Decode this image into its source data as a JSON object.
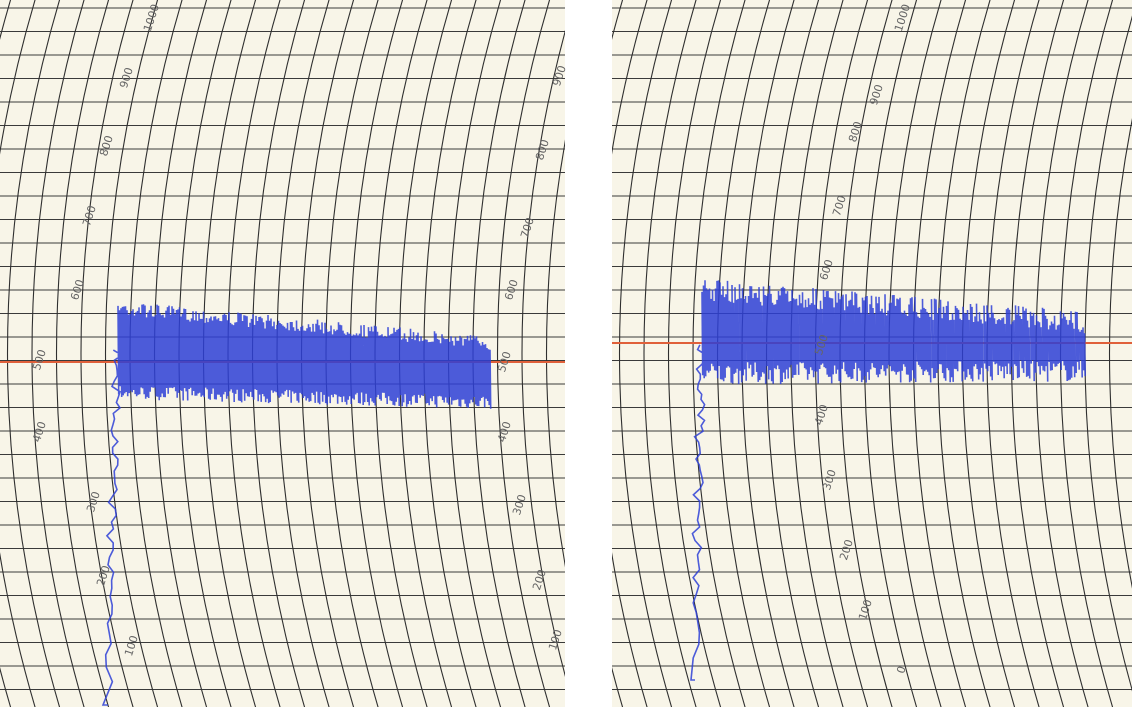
{
  "panels": [
    {
      "inner_scale": [
        "1000",
        "900",
        "800",
        "700",
        "600",
        "500",
        "400",
        "300",
        "200",
        "100"
      ],
      "outer_scale": [
        "900",
        "800",
        "700",
        "600",
        "500",
        "400",
        "300",
        "200",
        "100"
      ]
    },
    {
      "inner_scale": [
        "1000",
        "900",
        "800",
        "700",
        "600",
        "500",
        "400",
        "300",
        "200",
        "100",
        "0"
      ]
    }
  ]
}
